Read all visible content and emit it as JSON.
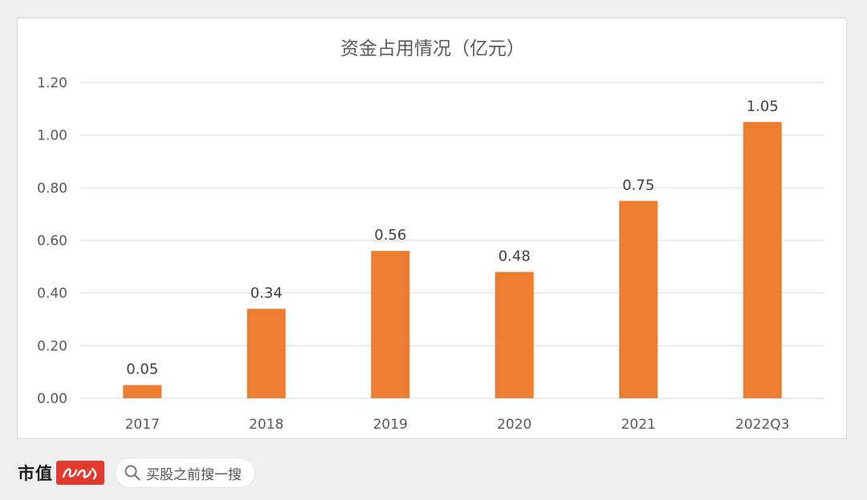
{
  "chart_data": {
    "type": "bar",
    "title": "资金占用情况（亿元）",
    "categories": [
      "2017",
      "2018",
      "2019",
      "2020",
      "2021",
      "2022Q3"
    ],
    "values": [
      0.05,
      0.34,
      0.56,
      0.48,
      0.75,
      1.05
    ],
    "data_labels": [
      "0.05",
      "0.34",
      "0.56",
      "0.48",
      "0.75",
      "1.05"
    ],
    "yticks": [
      "0.00",
      "0.20",
      "0.40",
      "0.60",
      "0.80",
      "1.00",
      "1.20"
    ],
    "ylim": [
      0,
      1.2
    ],
    "grid": true,
    "legend": "none",
    "bar_color": "#ed7d31"
  },
  "footer": {
    "logo_text": "市值",
    "search_text": "买股之前搜一搜"
  },
  "colors": {
    "page_bg": "#efefef",
    "logo_red": "#e33a2d"
  }
}
